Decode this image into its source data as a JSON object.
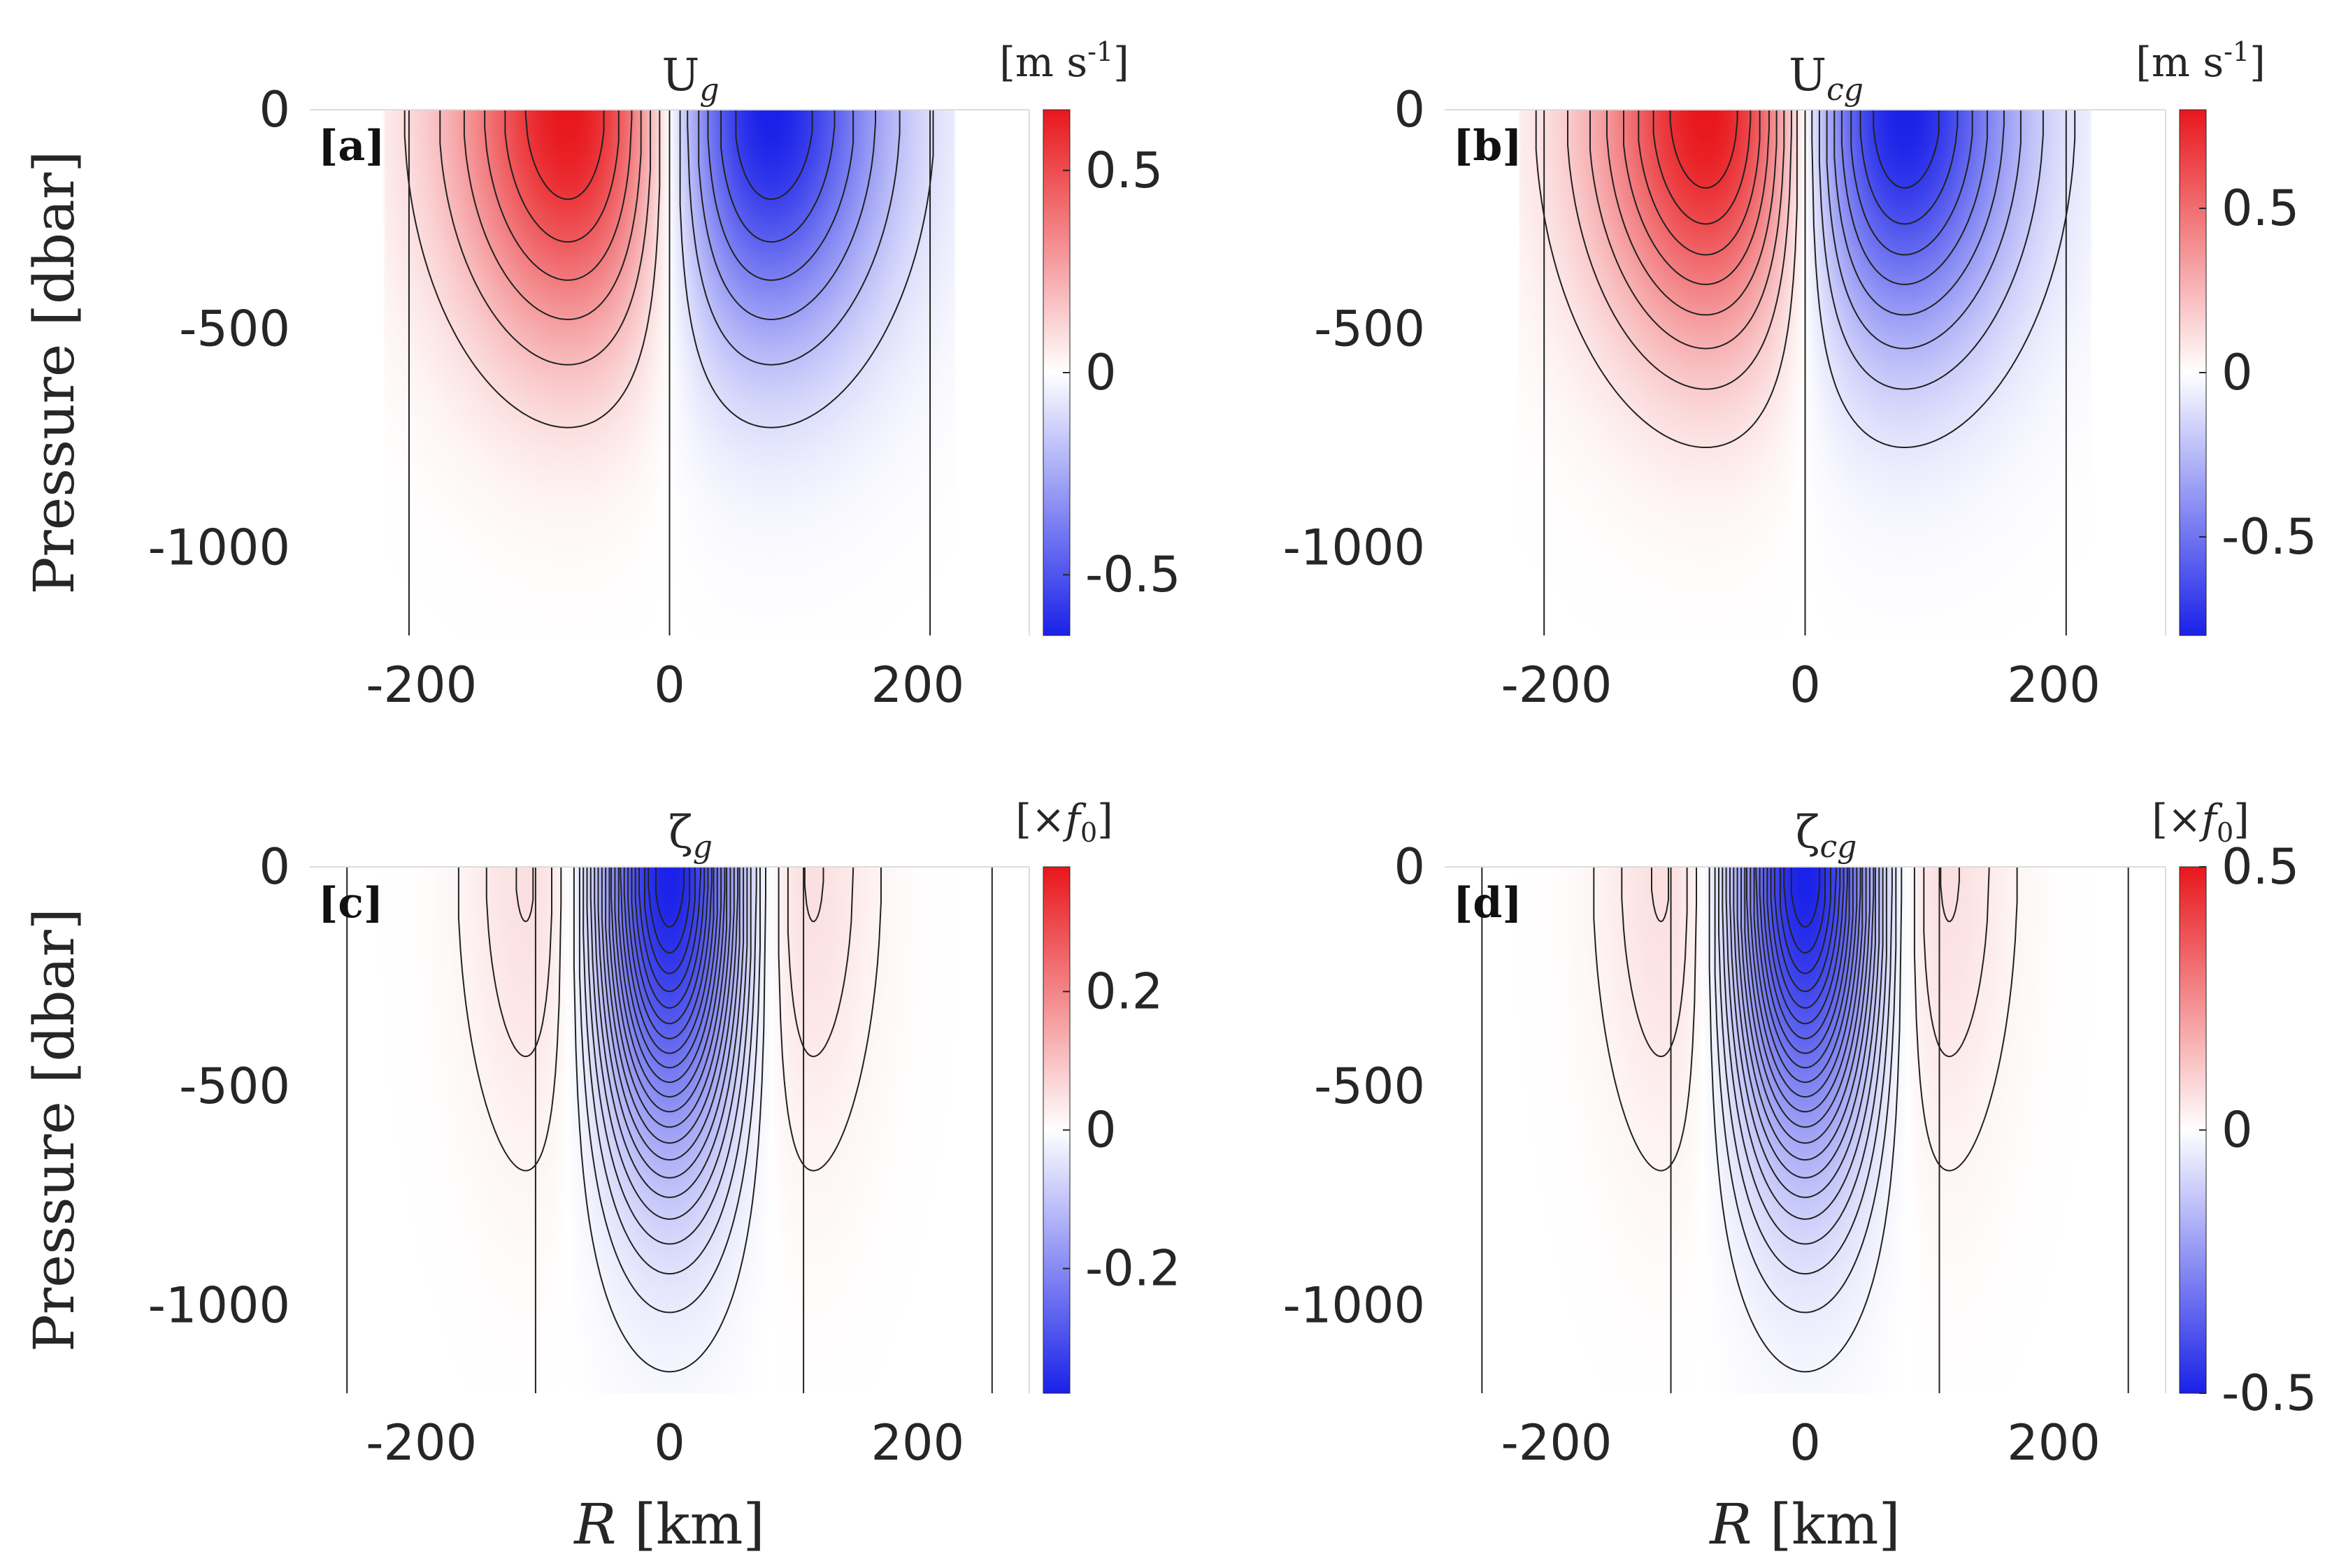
{
  "chart_data": [
    {
      "panel": "[a]",
      "type": "heatmap",
      "title": {
        "main": "U",
        "sub": "g"
      },
      "units": {
        "prefix": "[m s",
        "sup": "-1",
        "suffix": "]"
      },
      "ylabel": "Pressure [dbar]",
      "xlabel": null,
      "xlim": [
        -290,
        290
      ],
      "ylim": [
        -1200,
        0
      ],
      "xticks": [
        -200,
        0,
        200
      ],
      "yticks": [
        0,
        -500,
        -1000
      ],
      "xtick_labels": [
        "-200",
        "0",
        "200"
      ],
      "ytick_labels": [
        "0",
        "-500",
        "-1000"
      ],
      "colorbar": {
        "clim": [
          -0.65,
          0.65
        ],
        "ticks": [
          0.5,
          0,
          -0.5
        ],
        "tick_labels": [
          "0.5",
          "0",
          "-0.5"
        ]
      },
      "field": "velocity",
      "amplitude": 0.65,
      "scale_depth_dbar": 520,
      "core_radius_km": 82,
      "extent_km": 210,
      "contour_count": 6,
      "zero_contours_km": [
        -210,
        0,
        210
      ]
    },
    {
      "panel": "[b]",
      "type": "heatmap",
      "title": {
        "main": "U",
        "sub": "cg"
      },
      "units": {
        "prefix": "[m s",
        "sup": "-1",
        "suffix": "]"
      },
      "ylabel": null,
      "xlabel": null,
      "xlim": [
        -290,
        290
      ],
      "ylim": [
        -1200,
        0
      ],
      "xticks": [
        -200,
        0,
        200
      ],
      "yticks": [
        0,
        -500,
        -1000
      ],
      "xtick_labels": [
        "-200",
        "0",
        "200"
      ],
      "ytick_labels": [
        "0",
        "-500",
        "-1000"
      ],
      "colorbar": {
        "clim": [
          -0.8,
          0.8
        ],
        "ticks": [
          0.5,
          0,
          -0.5
        ],
        "tick_labels": [
          "0.5",
          "0",
          "-0.5"
        ]
      },
      "field": "velocity",
      "amplitude": 0.8,
      "scale_depth_dbar": 520,
      "core_radius_km": 80,
      "extent_km": 210,
      "contour_count": 8,
      "zero_contours_km": [
        -210,
        0,
        210
      ]
    },
    {
      "panel": "[c]",
      "type": "heatmap",
      "title": {
        "main": "ζ",
        "sub": "g"
      },
      "units": {
        "prefix": "[×",
        "italic": "f",
        "sub": "0",
        "suffix": "]"
      },
      "ylabel": "Pressure [dbar]",
      "xlabel": "R [km]",
      "xlim": [
        -290,
        290
      ],
      "ylim": [
        -1200,
        0
      ],
      "xticks": [
        -200,
        0,
        200
      ],
      "yticks": [
        0,
        -500,
        -1000
      ],
      "xtick_labels": [
        "-200",
        "0",
        "200"
      ],
      "ytick_labels": [
        "0",
        "-500",
        "-1000"
      ],
      "colorbar": {
        "clim": [
          -0.38,
          0.38
        ],
        "ticks": [
          0.2,
          0,
          -0.2
        ],
        "tick_labels": [
          "0.2",
          "0",
          "-0.2"
        ]
      },
      "field": "vorticity",
      "amplitude": 0.38,
      "scale_depth_dbar": 650,
      "core_radius_km": 58,
      "extent_km": 260,
      "contour_count": 22,
      "zero_contours_km": [
        -260,
        -108,
        108,
        260
      ]
    },
    {
      "panel": "[d]",
      "type": "heatmap",
      "title": {
        "main": "ζ",
        "sub": "cg"
      },
      "units": {
        "prefix": "[×",
        "italic": "f",
        "sub": "0",
        "suffix": "]"
      },
      "ylabel": null,
      "xlabel": "R [km]",
      "xlim": [
        -290,
        290
      ],
      "ylim": [
        -1200,
        0
      ],
      "xticks": [
        -200,
        0,
        200
      ],
      "yticks": [
        0,
        -500,
        -1000
      ],
      "xtick_labels": [
        "-200",
        "0",
        "200"
      ],
      "ytick_labels": [
        "0",
        "-500",
        "-1000"
      ],
      "colorbar": {
        "clim": [
          -0.5,
          0.5
        ],
        "ticks": [
          0.5,
          0,
          -0.5
        ],
        "tick_labels": [
          "0.5",
          "0",
          "-0.5"
        ]
      },
      "field": "vorticity",
      "amplitude": 0.5,
      "scale_depth_dbar": 650,
      "core_radius_km": 58,
      "extent_km": 260,
      "contour_count": 22,
      "zero_contours_km": [
        -260,
        -108,
        108,
        260
      ]
    }
  ],
  "colors": {
    "positive": "#e8171c",
    "zero": "#ffffff",
    "negative": "#1a21e8",
    "text": "#262626",
    "contour": "#222222"
  }
}
